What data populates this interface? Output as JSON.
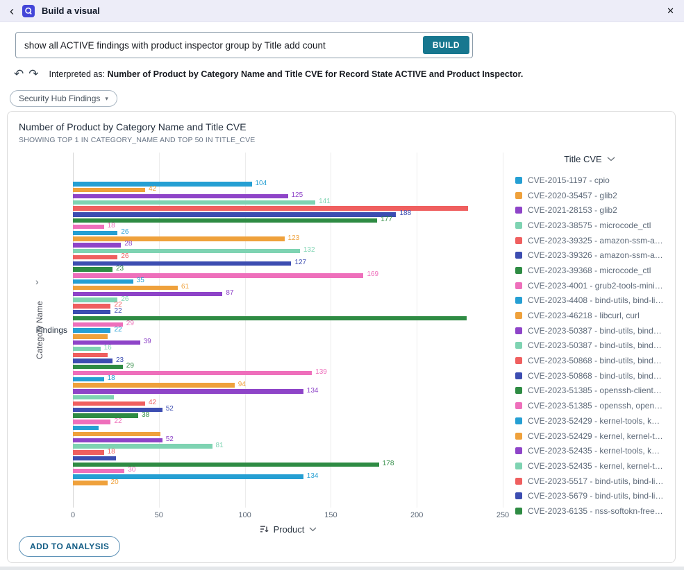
{
  "icons": {
    "back": "‹",
    "close": "✕",
    "undo": "↶",
    "redo": "↷",
    "chip_caret": "▾",
    "y_caret": "›"
  },
  "header": {
    "title": "Build a visual"
  },
  "prompt": {
    "value": "show all ACTIVE findings with product inspector group by Title add count",
    "build_label": "BUILD"
  },
  "interpretation": {
    "prefix": "Interpreted as:",
    "text": "Number of Product by Category Name and Title CVE for Record State ACTIVE and Product Inspector."
  },
  "dataset_chip": {
    "label": "Security Hub Findings"
  },
  "chart": {
    "title": "Number of Product by Category Name and Title CVE",
    "subtitle": "SHOWING TOP 1 IN CATEGORY_NAME AND TOP 50 IN TITLE_CVE",
    "y_axis_label": "Category Name",
    "category_label": "Findings",
    "x_axis_label": "Product"
  },
  "palette": [
    "#259fd3",
    "#efa13b",
    "#8e44c8",
    "#7ed3b2",
    "#ef5f5f",
    "#3c4db1",
    "#2e8b43",
    "#ee6fbb"
  ],
  "chart_data": {
    "type": "bar",
    "orientation": "horizontal",
    "title": "Number of Product by Category Name and Title CVE",
    "xlabel": "Product",
    "ylabel": "Category Name",
    "categories": [
      "Findings"
    ],
    "xlim": [
      0,
      250
    ],
    "x_ticks": [
      0,
      50,
      100,
      150,
      200,
      250
    ],
    "grid": true,
    "legend_position": "right",
    "bars": [
      {
        "value": 104,
        "color": 0,
        "labeled": true
      },
      {
        "value": 42,
        "color": 1,
        "labeled": true
      },
      {
        "value": 125,
        "color": 2,
        "labeled": true
      },
      {
        "value": 141,
        "color": 3,
        "labeled": true
      },
      {
        "value": 230,
        "color": 4,
        "labeled": false
      },
      {
        "value": 188,
        "color": 5,
        "labeled": true
      },
      {
        "value": 177,
        "color": 6,
        "labeled": true
      },
      {
        "value": 18,
        "color": 7,
        "labeled": true
      },
      {
        "value": 26,
        "color": 0,
        "labeled": true
      },
      {
        "value": 123,
        "color": 1,
        "labeled": true
      },
      {
        "value": 28,
        "color": 2,
        "labeled": true
      },
      {
        "value": 132,
        "color": 3,
        "labeled": true
      },
      {
        "value": 26,
        "color": 4,
        "labeled": true
      },
      {
        "value": 127,
        "color": 5,
        "labeled": true
      },
      {
        "value": 23,
        "color": 6,
        "labeled": true
      },
      {
        "value": 169,
        "color": 7,
        "labeled": true
      },
      {
        "value": 35,
        "color": 0,
        "labeled": true
      },
      {
        "value": 61,
        "color": 1,
        "labeled": true
      },
      {
        "value": 87,
        "color": 2,
        "labeled": true
      },
      {
        "value": 26,
        "color": 3,
        "labeled": true
      },
      {
        "value": 22,
        "color": 4,
        "labeled": true
      },
      {
        "value": 22,
        "color": 5,
        "labeled": true
      },
      {
        "value": 229,
        "color": 6,
        "labeled": false
      },
      {
        "value": 29,
        "color": 7,
        "labeled": true
      },
      {
        "value": 22,
        "color": 0,
        "labeled": true
      },
      {
        "value": 20,
        "color": 1,
        "labeled": false
      },
      {
        "value": 39,
        "color": 2,
        "labeled": true
      },
      {
        "value": 16,
        "color": 3,
        "labeled": true
      },
      {
        "value": 20,
        "color": 4,
        "labeled": false
      },
      {
        "value": 23,
        "color": 5,
        "labeled": true
      },
      {
        "value": 29,
        "color": 6,
        "labeled": true
      },
      {
        "value": 139,
        "color": 7,
        "labeled": true
      },
      {
        "value": 18,
        "color": 0,
        "labeled": true
      },
      {
        "value": 94,
        "color": 1,
        "labeled": true
      },
      {
        "value": 134,
        "color": 2,
        "labeled": true
      },
      {
        "value": 24,
        "color": 3,
        "labeled": false
      },
      {
        "value": 42,
        "color": 4,
        "labeled": true
      },
      {
        "value": 52,
        "color": 5,
        "labeled": true
      },
      {
        "value": 38,
        "color": 6,
        "labeled": true
      },
      {
        "value": 22,
        "color": 7,
        "labeled": true
      },
      {
        "value": 15,
        "color": 0,
        "labeled": false
      },
      {
        "value": 51,
        "color": 1,
        "labeled": false
      },
      {
        "value": 52,
        "color": 2,
        "labeled": true
      },
      {
        "value": 81,
        "color": 3,
        "labeled": true
      },
      {
        "value": 18,
        "color": 4,
        "labeled": true
      },
      {
        "value": 25,
        "color": 5,
        "labeled": false
      },
      {
        "value": 178,
        "color": 6,
        "labeled": true
      },
      {
        "value": 30,
        "color": 7,
        "labeled": true
      },
      {
        "value": 134,
        "color": 0,
        "labeled": true
      },
      {
        "value": 20,
        "color": 1,
        "labeled": true
      }
    ]
  },
  "legend": {
    "title": "Title CVE",
    "items": [
      {
        "label": "CVE-2015-1197 - cpio",
        "color": 0
      },
      {
        "label": "CVE-2020-35457 - glib2",
        "color": 1
      },
      {
        "label": "CVE-2021-28153 - glib2",
        "color": 2
      },
      {
        "label": "CVE-2023-38575 - microcode_ctl",
        "color": 3
      },
      {
        "label": "CVE-2023-39325 - amazon-ssm-agent",
        "color": 4
      },
      {
        "label": "CVE-2023-39326 - amazon-ssm-agent",
        "color": 5
      },
      {
        "label": "CVE-2023-39368 - microcode_ctl",
        "color": 6
      },
      {
        "label": "CVE-2023-4001 - grub2-tools-mini…",
        "color": 7
      },
      {
        "label": "CVE-2023-4408 - bind-utils, bind-lib…",
        "color": 0
      },
      {
        "label": "CVE-2023-46218 - libcurl, curl",
        "color": 1
      },
      {
        "label": "CVE-2023-50387 - bind-utils, bind-li…",
        "color": 2
      },
      {
        "label": "CVE-2023-50387 - bind-utils, bind-li…",
        "color": 3
      },
      {
        "label": "CVE-2023-50868 - bind-utils, bind-li…",
        "color": 4
      },
      {
        "label": "CVE-2023-50868 - bind-utils, bind-li…",
        "color": 5
      },
      {
        "label": "CVE-2023-51385 - openssh-clients, …",
        "color": 6
      },
      {
        "label": "CVE-2023-51385 - openssh, openss…",
        "color": 7
      },
      {
        "label": "CVE-2023-52429 - kernel-tools, kernel",
        "color": 0
      },
      {
        "label": "CVE-2023-52429 - kernel, kernel-tools",
        "color": 1
      },
      {
        "label": "CVE-2023-52435 - kernel-tools, kernel",
        "color": 2
      },
      {
        "label": "CVE-2023-52435 - kernel, kernel-tools",
        "color": 3
      },
      {
        "label": "CVE-2023-5517 - bind-utils, bind-lib…",
        "color": 4
      },
      {
        "label": "CVE-2023-5679 - bind-utils, bind-lib…",
        "color": 5
      },
      {
        "label": "CVE-2023-6135 - nss-softokn-freebl…",
        "color": 6
      }
    ]
  },
  "add_button": {
    "label": "ADD TO ANALYSIS"
  }
}
